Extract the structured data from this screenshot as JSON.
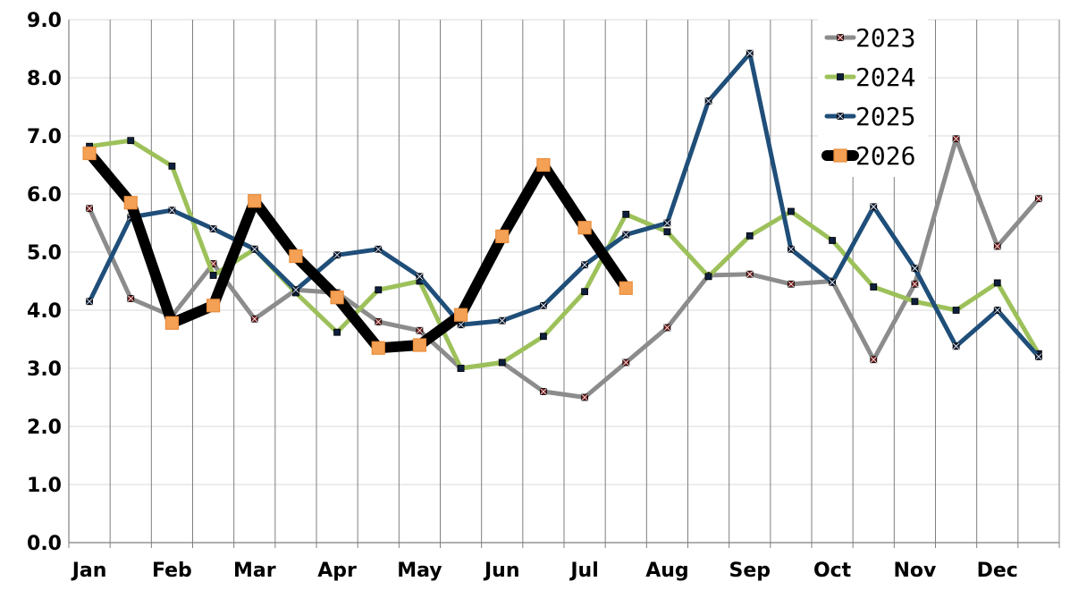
{
  "chart_data": {
    "type": "line",
    "ylim": [
      0,
      9
    ],
    "yticks": [
      "0.0",
      "1.0",
      "2.0",
      "3.0",
      "4.0",
      "5.0",
      "6.0",
      "7.0",
      "8.0",
      "9.0"
    ],
    "month_labels": [
      "Jan",
      "Feb",
      "Mar",
      "Apr",
      "May",
      "Jun",
      "Jul",
      "Aug",
      "Sep",
      "Oct",
      "Nov",
      "Dec"
    ],
    "points_per_month": 2,
    "grid": true,
    "legend_position": "top-right",
    "series": [
      {
        "name": "2023",
        "color": "#8c8c8c",
        "marker_color": "#7a1f1f",
        "marker": "x-square",
        "values": [
          5.75,
          4.2,
          3.9,
          4.8,
          3.85,
          4.35,
          4.3,
          3.8,
          3.65,
          3.0,
          3.1,
          2.6,
          2.5,
          3.1,
          3.7,
          4.6,
          4.62,
          4.45,
          4.5,
          3.15,
          4.45,
          6.95,
          5.1,
          5.92
        ]
      },
      {
        "name": "2024",
        "color": "#9dc15a",
        "marker_color": "#0d1f3c",
        "marker": "square",
        "values": [
          6.82,
          6.92,
          6.48,
          4.6,
          5.05,
          4.3,
          3.62,
          4.35,
          4.5,
          3.0,
          3.1,
          3.55,
          4.32,
          5.65,
          5.35,
          4.58,
          5.28,
          5.7,
          5.2,
          4.4,
          4.15,
          4.0,
          4.47,
          3.25
        ]
      },
      {
        "name": "2025",
        "color": "#1f4e79",
        "marker_color": "#0d1f3c",
        "marker": "x-square",
        "values": [
          4.15,
          5.6,
          5.72,
          5.4,
          5.05,
          4.35,
          4.95,
          5.05,
          4.58,
          3.75,
          3.82,
          4.08,
          4.78,
          5.3,
          5.5,
          7.6,
          8.42,
          5.05,
          4.48,
          5.78,
          4.72,
          3.38,
          4.0,
          3.2
        ]
      },
      {
        "name": "2026",
        "color": "#000000",
        "marker_color": "#f4a155",
        "marker": "square",
        "values": [
          6.7,
          5.85,
          3.78,
          4.08,
          5.88,
          4.93,
          4.22,
          3.35,
          3.4,
          3.92,
          5.27,
          6.5,
          5.42,
          4.38
        ]
      }
    ]
  }
}
